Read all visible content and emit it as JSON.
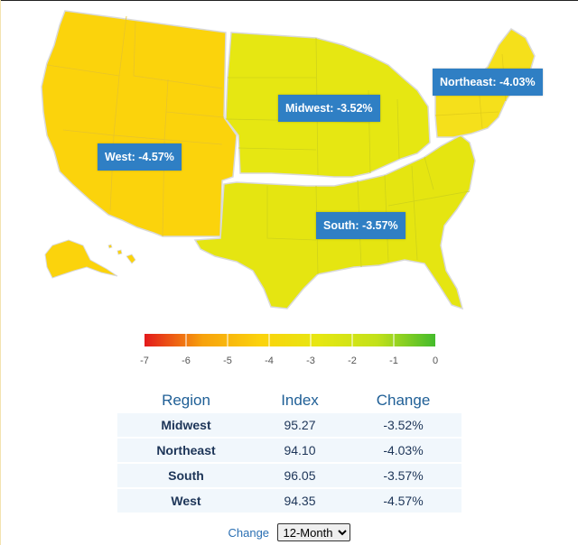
{
  "map": {
    "regions": [
      {
        "name": "West",
        "label": "West: -4.57%",
        "color": "#fbd30c"
      },
      {
        "name": "Midwest",
        "label": "Midwest: -3.52%",
        "color": "#e6e712"
      },
      {
        "name": "South",
        "label": "South: -3.57%",
        "color": "#e5e511"
      },
      {
        "name": "Northeast",
        "label": "Northeast: -4.03%",
        "color": "#f5e01b"
      }
    ],
    "label_background": "#2f7fc4",
    "border_color": "#d9d9d9"
  },
  "scale": {
    "ticks": [
      "-7",
      "-6",
      "-5",
      "-4",
      "-3",
      "-2",
      "-1",
      "0"
    ],
    "gradient": [
      "#e31a1c",
      "#f7a20c",
      "#fbd30c",
      "#e6e712",
      "#c2e11a",
      "#44bb2c"
    ]
  },
  "table": {
    "headers": [
      "Region",
      "Index",
      "Change"
    ],
    "rows": [
      [
        "Midwest",
        "95.27",
        "-3.52%"
      ],
      [
        "Northeast",
        "94.10",
        "-4.03%"
      ],
      [
        "South",
        "96.05",
        "-3.57%"
      ],
      [
        "West",
        "94.35",
        "-4.57%"
      ]
    ]
  },
  "control": {
    "label": "Change",
    "selected": "12-Month",
    "options": [
      "12-Month"
    ]
  }
}
